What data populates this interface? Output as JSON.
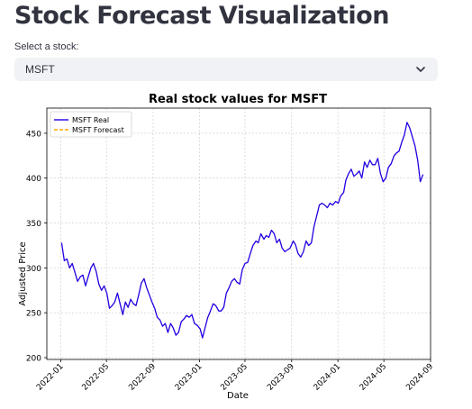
{
  "page": {
    "title": "Stock Forecast Visualization"
  },
  "stock_select": {
    "label": "Select a stock:",
    "selected": "MSFT",
    "icon": "chevron-down-icon"
  },
  "chart_data": {
    "type": "line",
    "title": "Real stock values for MSFT",
    "xlabel": "Date",
    "ylabel": "Adjusted Price",
    "x_ticks": [
      "2022-01",
      "2022-05",
      "2022-09",
      "2023-01",
      "2023-05",
      "2023-09",
      "2024-01",
      "2024-05",
      "2024-09"
    ],
    "y_ticks": [
      200,
      250,
      300,
      350,
      400,
      450
    ],
    "xlim": [
      "2021-11-25",
      "2024-09-01"
    ],
    "ylim": [
      198,
      478
    ],
    "grid": true,
    "legend_position": "top-left",
    "colors": {
      "real": "#1f00e0",
      "forecast": "#ffa500"
    },
    "series": [
      {
        "name": "MSFT Real",
        "style": "solid",
        "x": [
          "2022-01-03",
          "2022-01-10",
          "2022-01-17",
          "2022-01-24",
          "2022-01-31",
          "2022-02-07",
          "2022-02-14",
          "2022-02-21",
          "2022-02-28",
          "2022-03-07",
          "2022-03-14",
          "2022-03-21",
          "2022-03-28",
          "2022-04-04",
          "2022-04-11",
          "2022-04-18",
          "2022-04-25",
          "2022-05-02",
          "2022-05-09",
          "2022-05-16",
          "2022-05-23",
          "2022-05-30",
          "2022-06-06",
          "2022-06-13",
          "2022-06-20",
          "2022-06-27",
          "2022-07-04",
          "2022-07-11",
          "2022-07-18",
          "2022-07-25",
          "2022-08-01",
          "2022-08-08",
          "2022-08-15",
          "2022-08-22",
          "2022-08-29",
          "2022-09-05",
          "2022-09-12",
          "2022-09-19",
          "2022-09-26",
          "2022-10-03",
          "2022-10-10",
          "2022-10-17",
          "2022-10-24",
          "2022-10-31",
          "2022-11-07",
          "2022-11-14",
          "2022-11-21",
          "2022-11-28",
          "2022-12-05",
          "2022-12-12",
          "2022-12-19",
          "2022-12-26",
          "2023-01-03",
          "2023-01-09",
          "2023-01-17",
          "2023-01-23",
          "2023-01-30",
          "2023-02-06",
          "2023-02-13",
          "2023-02-21",
          "2023-02-27",
          "2023-03-06",
          "2023-03-13",
          "2023-03-20",
          "2023-03-27",
          "2023-04-03",
          "2023-04-10",
          "2023-04-17",
          "2023-04-24",
          "2023-05-01",
          "2023-05-08",
          "2023-05-15",
          "2023-05-22",
          "2023-05-30",
          "2023-06-05",
          "2023-06-12",
          "2023-06-20",
          "2023-06-26",
          "2023-07-03",
          "2023-07-10",
          "2023-07-17",
          "2023-07-24",
          "2023-07-31",
          "2023-08-07",
          "2023-08-14",
          "2023-08-21",
          "2023-08-28",
          "2023-09-05",
          "2023-09-11",
          "2023-09-18",
          "2023-09-25",
          "2023-10-02",
          "2023-10-09",
          "2023-10-16",
          "2023-10-23",
          "2023-10-30",
          "2023-11-06",
          "2023-11-13",
          "2023-11-20",
          "2023-11-27",
          "2023-12-04",
          "2023-12-11",
          "2023-12-18",
          "2023-12-26",
          "2024-01-02",
          "2024-01-08",
          "2024-01-16",
          "2024-01-22",
          "2024-01-29",
          "2024-02-05",
          "2024-02-12",
          "2024-02-20",
          "2024-02-26",
          "2024-03-04",
          "2024-03-11",
          "2024-03-18",
          "2024-03-25",
          "2024-04-01",
          "2024-04-08",
          "2024-04-15",
          "2024-04-22",
          "2024-04-29",
          "2024-05-06",
          "2024-05-13",
          "2024-05-20",
          "2024-05-28",
          "2024-06-03",
          "2024-06-10",
          "2024-06-17",
          "2024-06-24",
          "2024-07-01",
          "2024-07-08",
          "2024-07-15",
          "2024-07-22",
          "2024-07-29",
          "2024-08-05",
          "2024-08-12"
        ],
        "y": [
          328,
          308,
          310,
          300,
          305,
          295,
          285,
          290,
          292,
          280,
          290,
          300,
          305,
          296,
          282,
          275,
          280,
          272,
          255,
          258,
          262,
          272,
          260,
          248,
          262,
          256,
          265,
          260,
          258,
          270,
          283,
          288,
          278,
          270,
          262,
          255,
          245,
          242,
          235,
          238,
          228,
          238,
          233,
          225,
          228,
          240,
          243,
          247,
          245,
          248,
          238,
          236,
          232,
          222,
          235,
          245,
          252,
          260,
          258,
          252,
          252,
          256,
          272,
          278,
          285,
          288,
          284,
          282,
          298,
          305,
          306,
          316,
          325,
          330,
          328,
          338,
          332,
          336,
          334,
          342,
          338,
          328,
          332,
          322,
          318,
          320,
          322,
          330,
          326,
          316,
          312,
          318,
          330,
          325,
          328,
          346,
          358,
          370,
          372,
          370,
          367,
          372,
          370,
          374,
          372,
          380,
          384,
          398,
          405,
          410,
          402,
          405,
          408,
          400,
          418,
          412,
          420,
          415,
          415,
          422,
          405,
          396,
          400,
          412,
          416,
          425,
          428,
          430,
          440,
          448,
          462,
          456,
          446,
          436,
          420,
          396,
          404
        ]
      },
      {
        "name": "MSFT Forecast",
        "style": "dashed",
        "x": [],
        "y": []
      }
    ]
  }
}
